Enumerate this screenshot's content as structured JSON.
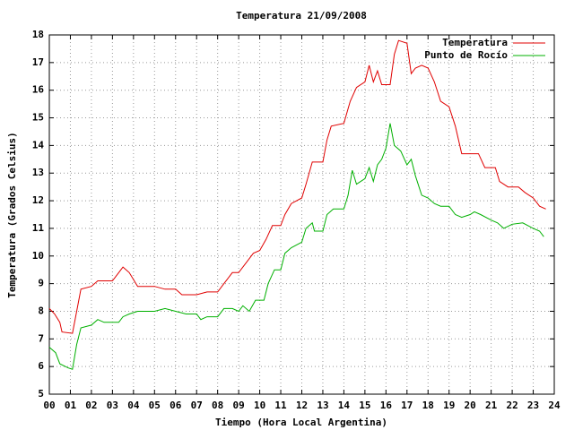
{
  "chart_data": {
    "type": "line",
    "title": "Temperatura 21/09/2008",
    "xlabel": "Tiempo (Hora Local Argentina)",
    "ylabel": "Temperatura (Grados Celsius)",
    "xlim": [
      0,
      24
    ],
    "ylim": [
      5,
      18
    ],
    "xticks": [
      {
        "value": 0,
        "label": "00"
      },
      {
        "value": 1,
        "label": "01"
      },
      {
        "value": 2,
        "label": "02"
      },
      {
        "value": 3,
        "label": "03"
      },
      {
        "value": 4,
        "label": "04"
      },
      {
        "value": 5,
        "label": "05"
      },
      {
        "value": 6,
        "label": "06"
      },
      {
        "value": 7,
        "label": "07"
      },
      {
        "value": 8,
        "label": "08"
      },
      {
        "value": 9,
        "label": "09"
      },
      {
        "value": 10,
        "label": "10"
      },
      {
        "value": 11,
        "label": "11"
      },
      {
        "value": 12,
        "label": "12"
      },
      {
        "value": 13,
        "label": "13"
      },
      {
        "value": 14,
        "label": "14"
      },
      {
        "value": 15,
        "label": "15"
      },
      {
        "value": 16,
        "label": "16"
      },
      {
        "value": 17,
        "label": "17"
      },
      {
        "value": 18,
        "label": "18"
      },
      {
        "value": 19,
        "label": "19"
      },
      {
        "value": 20,
        "label": "20"
      },
      {
        "value": 21,
        "label": "21"
      },
      {
        "value": 22,
        "label": "22"
      },
      {
        "value": 23,
        "label": "23"
      },
      {
        "value": 24,
        "label": "24"
      }
    ],
    "yticks": [
      5,
      6,
      7,
      8,
      9,
      10,
      11,
      12,
      13,
      14,
      15,
      16,
      17,
      18
    ],
    "grid": true,
    "legend": "upper right",
    "series": [
      {
        "name": "Temperatura",
        "color": "#e00000",
        "x": [
          0,
          0.25,
          0.5,
          0.6,
          1.1,
          1.3,
          1.5,
          2,
          2.3,
          3,
          3.3,
          3.5,
          3.8,
          4.2,
          5,
          5.5,
          6,
          6.3,
          7,
          7.5,
          8,
          8.3,
          8.7,
          9,
          9.4,
          9.7,
          10,
          10.3,
          10.6,
          11,
          11.2,
          11.5,
          12,
          12.2,
          12.5,
          13,
          13.2,
          13.4,
          14,
          14.3,
          14.6,
          15,
          15.2,
          15.4,
          15.6,
          15.8,
          16.2,
          16.4,
          16.6,
          17,
          17.2,
          17.4,
          17.7,
          18,
          18.3,
          18.6,
          19,
          19.3,
          19.6,
          20,
          20.4,
          20.7,
          21.2,
          21.4,
          21.8,
          22.3,
          22.6,
          23,
          23.3,
          23.6
        ],
        "values": [
          8.1,
          7.9,
          7.6,
          7.25,
          7.2,
          8.0,
          8.8,
          8.9,
          9.1,
          9.1,
          9.4,
          9.6,
          9.4,
          8.9,
          8.9,
          8.8,
          8.8,
          8.6,
          8.6,
          8.7,
          8.7,
          9.0,
          9.4,
          9.4,
          9.8,
          10.1,
          10.2,
          10.6,
          11.1,
          11.1,
          11.5,
          11.9,
          12.1,
          12.6,
          13.4,
          13.4,
          14.2,
          14.7,
          14.8,
          15.6,
          16.1,
          16.3,
          16.9,
          16.3,
          16.7,
          16.2,
          16.2,
          17.3,
          17.8,
          17.7,
          16.6,
          16.8,
          16.9,
          16.8,
          16.3,
          15.6,
          15.4,
          14.7,
          13.7,
          13.7,
          13.7,
          13.2,
          13.2,
          12.7,
          12.5,
          12.5,
          12.3,
          12.1,
          11.8,
          11.7
        ]
      },
      {
        "name": "Punto de Rocío",
        "color": "#00b000",
        "x": [
          0,
          0.3,
          0.5,
          0.9,
          1.1,
          1.3,
          1.5,
          2,
          2.3,
          2.6,
          3,
          3.3,
          3.5,
          3.8,
          4.2,
          5,
          5.5,
          6,
          6.5,
          7,
          7.2,
          7.5,
          8,
          8.3,
          8.7,
          9,
          9.2,
          9.5,
          9.8,
          10.2,
          10.4,
          10.7,
          11,
          11.2,
          11.5,
          12,
          12.2,
          12.5,
          12.6,
          13,
          13.2,
          13.5,
          14,
          14.2,
          14.4,
          14.6,
          15,
          15.2,
          15.4,
          15.6,
          15.8,
          16,
          16.2,
          16.4,
          16.7,
          17,
          17.2,
          17.4,
          17.7,
          18,
          18.3,
          18.6,
          19,
          19.3,
          19.6,
          20,
          20.2,
          20.5,
          21,
          21.3,
          21.6,
          22,
          22.5,
          23,
          23.3,
          23.5
        ],
        "values": [
          6.7,
          6.5,
          6.1,
          5.95,
          5.9,
          6.8,
          7.4,
          7.5,
          7.7,
          7.6,
          7.6,
          7.6,
          7.8,
          7.9,
          8.0,
          8.0,
          8.1,
          8.0,
          7.9,
          7.9,
          7.7,
          7.8,
          7.8,
          8.1,
          8.1,
          8.0,
          8.2,
          8.0,
          8.4,
          8.4,
          9.0,
          9.5,
          9.5,
          10.1,
          10.3,
          10.5,
          11.0,
          11.2,
          10.9,
          10.9,
          11.5,
          11.7,
          11.7,
          12.2,
          13.1,
          12.6,
          12.8,
          13.2,
          12.7,
          13.3,
          13.5,
          13.9,
          14.8,
          14.0,
          13.8,
          13.3,
          13.5,
          12.9,
          12.2,
          12.1,
          11.9,
          11.8,
          11.8,
          11.5,
          11.4,
          11.5,
          11.6,
          11.5,
          11.3,
          11.2,
          11.0,
          11.15,
          11.2,
          11.0,
          10.9,
          10.7
        ]
      }
    ]
  }
}
